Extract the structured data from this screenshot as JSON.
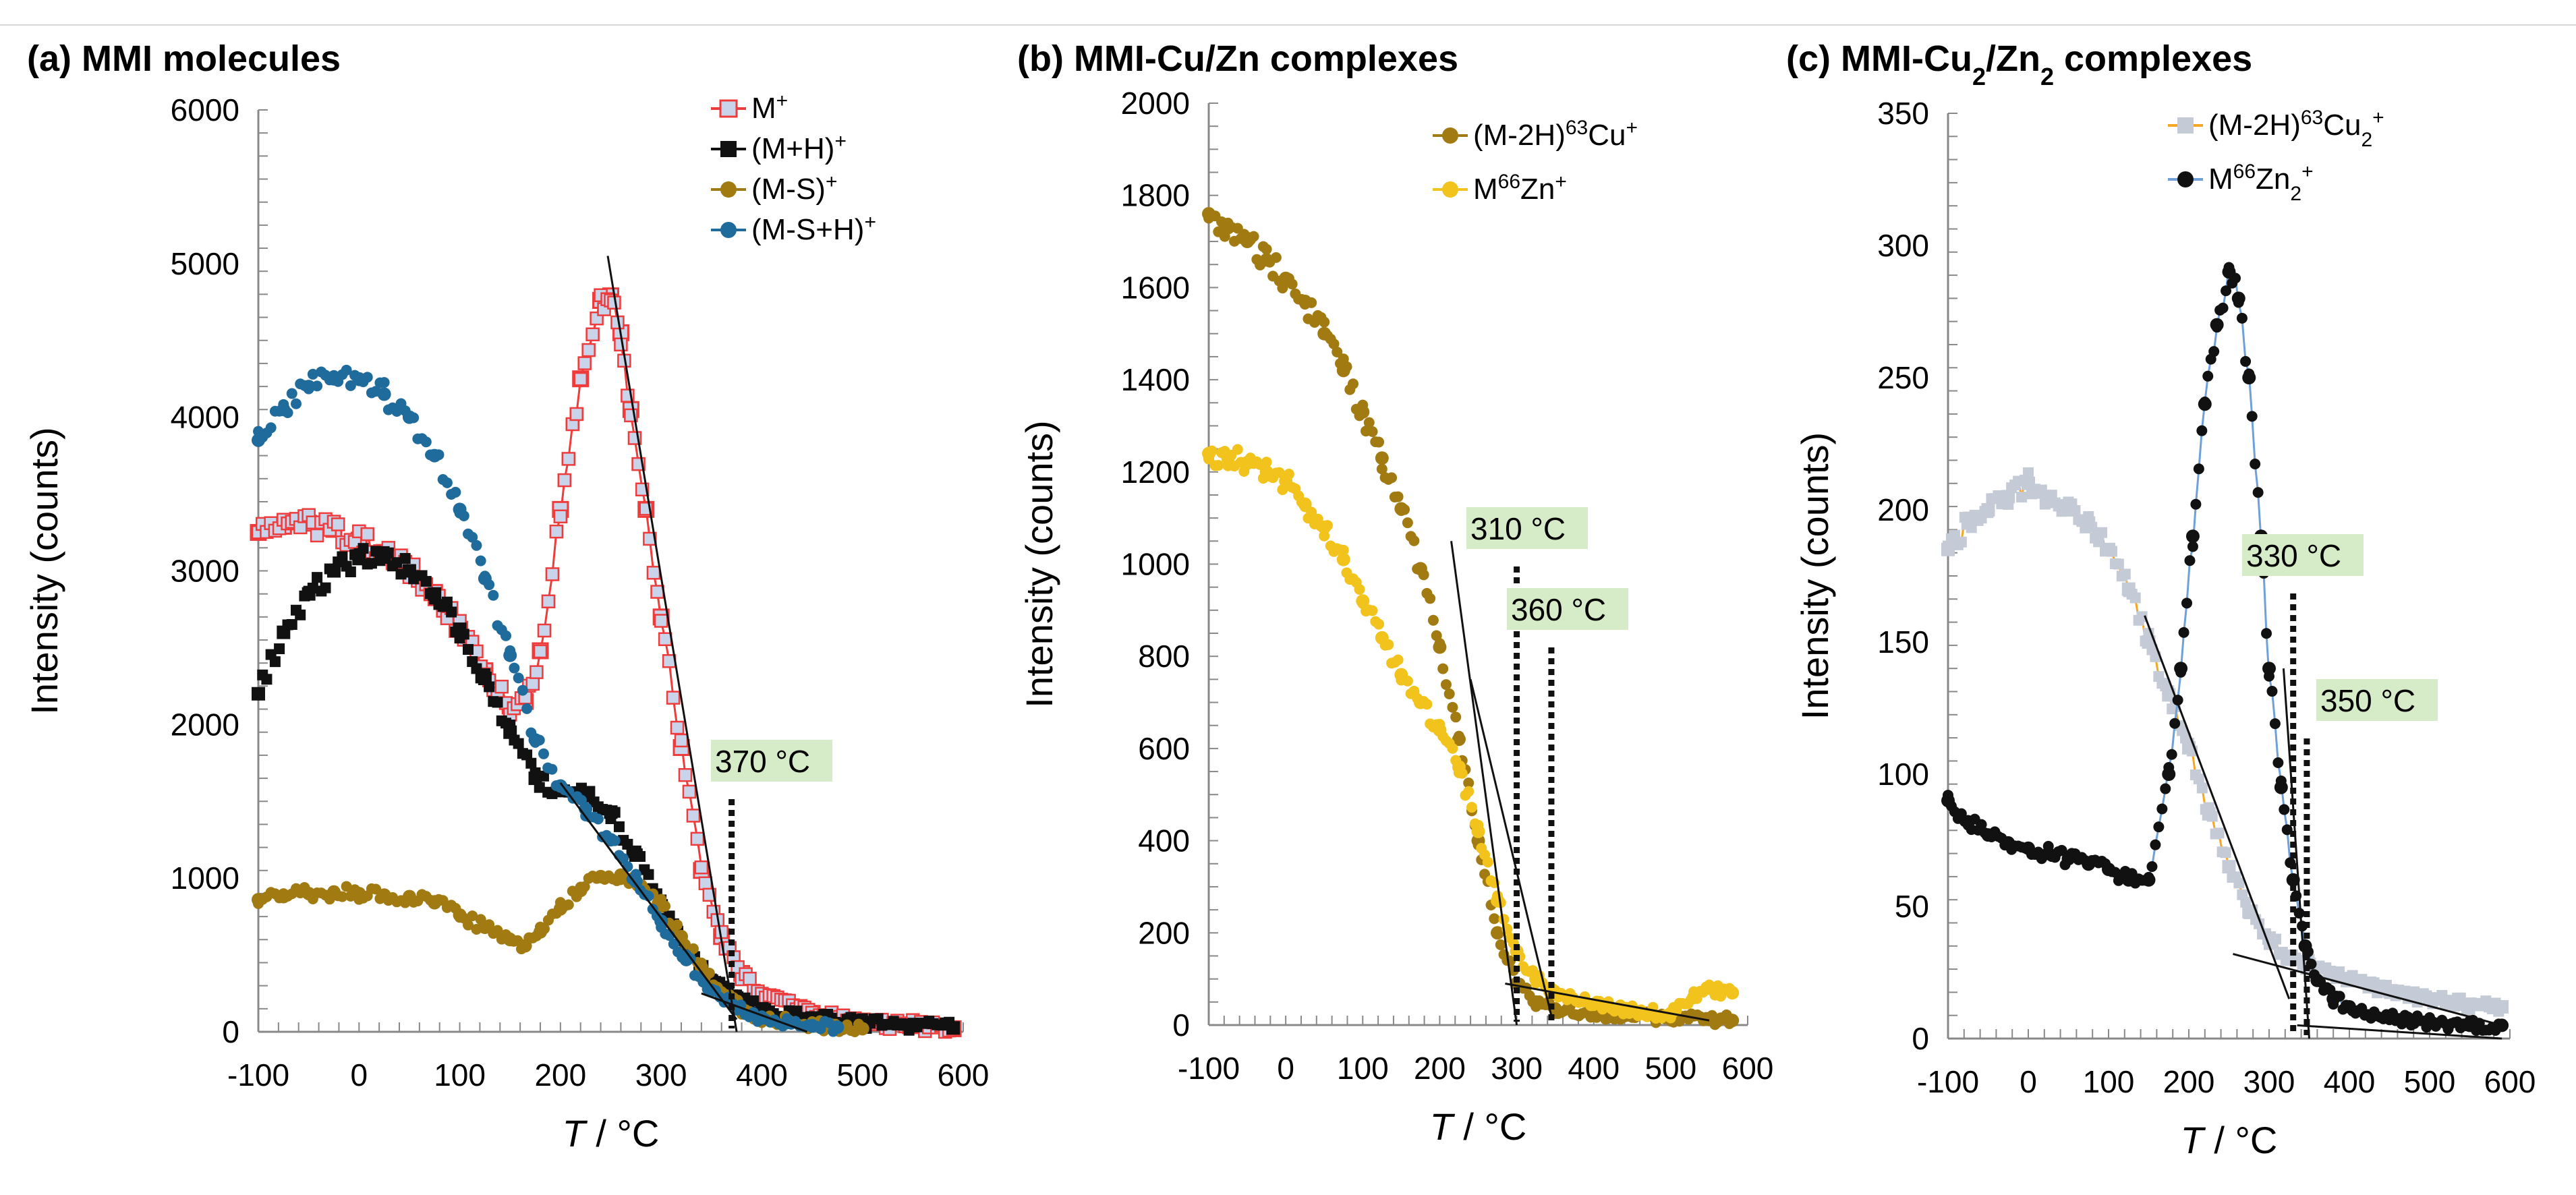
{
  "chart_data": [
    {
      "type": "scatter",
      "panel_label": "(a)",
      "title": "MMI molecules",
      "xlabel_var": "T",
      "xlabel_unit": " / °C",
      "ylabel": "Intensity (counts)",
      "xlim": [
        -100,
        600
      ],
      "ylim": [
        0,
        6000
      ],
      "xticks": [
        -100,
        0,
        100,
        200,
        300,
        400,
        500,
        600
      ],
      "yticks": [
        0,
        1000,
        2000,
        3000,
        4000,
        5000,
        6000
      ],
      "legend_position": "top-right",
      "series": [
        {
          "name": "M",
          "sup": "+",
          "color": "#ee3b3b",
          "fill": "#c9d4ea",
          "marker": "open-square",
          "line": true,
          "x": [
            -100,
            -75,
            -50,
            -25,
            0,
            25,
            50,
            75,
            100,
            125,
            150,
            165,
            180,
            200,
            220,
            240,
            250,
            260,
            270,
            285,
            300,
            320,
            340,
            360,
            380,
            400,
            450,
            500,
            550,
            590
          ],
          "y": [
            3250,
            3290,
            3310,
            3270,
            3200,
            3120,
            3010,
            2860,
            2620,
            2350,
            2120,
            2150,
            2480,
            3400,
            4250,
            4760,
            4790,
            4550,
            4050,
            3400,
            2700,
            1850,
            1050,
            620,
            380,
            230,
            120,
            70,
            40,
            20
          ]
        },
        {
          "name": "(M+H)",
          "sup": "+",
          "color": "#111111",
          "fill": "#111111",
          "marker": "square",
          "line": false,
          "x": [
            -100,
            -75,
            -50,
            -25,
            0,
            25,
            50,
            75,
            100,
            125,
            150,
            175,
            200,
            225,
            250,
            275,
            300,
            325,
            350,
            375,
            400,
            450,
            500,
            550,
            590
          ],
          "y": [
            2200,
            2600,
            2850,
            3000,
            3080,
            3090,
            3000,
            2850,
            2620,
            2300,
            1950,
            1650,
            1570,
            1540,
            1430,
            1150,
            820,
            520,
            330,
            220,
            150,
            90,
            60,
            40,
            25
          ]
        },
        {
          "name": "(M-S)",
          "sup": "+",
          "color": "#a17a12",
          "fill": "#a17a12",
          "marker": "circle",
          "line": false,
          "x": [
            -100,
            -75,
            -50,
            -25,
            0,
            25,
            50,
            75,
            100,
            125,
            150,
            165,
            180,
            200,
            220,
            240,
            260,
            280,
            300,
            320,
            340,
            360,
            380,
            400,
            450,
            500
          ],
          "y": [
            860,
            880,
            900,
            910,
            900,
            890,
            880,
            840,
            760,
            680,
            600,
            560,
            650,
            800,
            920,
            1010,
            1020,
            950,
            820,
            620,
            420,
            250,
            150,
            90,
            40,
            20
          ]
        },
        {
          "name": "(M-S+H)",
          "sup": "+",
          "color": "#1f6b9c",
          "fill": "#1f6b9c",
          "marker": "circle",
          "line": false,
          "x": [
            -100,
            -75,
            -50,
            -25,
            0,
            25,
            50,
            75,
            100,
            125,
            150,
            175,
            200,
            225,
            250,
            275,
            300,
            325,
            350,
            375,
            400,
            425,
            450,
            475
          ],
          "y": [
            3850,
            4050,
            4200,
            4250,
            4250,
            4150,
            4000,
            3750,
            3400,
            2950,
            2450,
            1900,
            1600,
            1450,
            1250,
            980,
            720,
            470,
            270,
            150,
            90,
            60,
            40,
            30
          ]
        }
      ],
      "fit_lines": [
        {
          "x": [
            247,
            375
          ],
          "y": [
            5050,
            0
          ]
        },
        {
          "x": [
            200,
            375
          ],
          "y": [
            1620,
            80
          ]
        },
        {
          "x": [
            340,
            445
          ],
          "y": [
            250,
            0
          ]
        }
      ],
      "annotations": [
        {
          "text": "370 °C",
          "x": 370
        }
      ]
    },
    {
      "type": "scatter",
      "panel_label": "(b)",
      "title": "MMI-Cu/Zn complexes",
      "xlabel_var": "T",
      "xlabel_unit": " / °C",
      "ylabel": "Intensity (counts)",
      "xlim": [
        -100,
        600
      ],
      "ylim": [
        0,
        2000
      ],
      "xticks": [
        -100,
        0,
        100,
        200,
        300,
        400,
        500,
        600
      ],
      "yticks": [
        0,
        200,
        400,
        600,
        800,
        1000,
        1200,
        1400,
        1600,
        1800,
        2000
      ],
      "legend_position": "top-right",
      "series": [
        {
          "name": "(M-2H)",
          "sup_mid": "63",
          "name2": "Cu",
          "sup": "+",
          "color": "#a17a12",
          "fill": "#a17a12",
          "marker": "circle",
          "line": false,
          "x": [
            -100,
            -75,
            -50,
            -25,
            0,
            25,
            50,
            75,
            100,
            125,
            150,
            175,
            200,
            225,
            250,
            275,
            300,
            325,
            350,
            400,
            450,
            500,
            550,
            580
          ],
          "y": [
            1760,
            1730,
            1700,
            1660,
            1620,
            1570,
            1500,
            1420,
            1330,
            1230,
            1120,
            990,
            820,
            620,
            400,
            200,
            90,
            50,
            35,
            25,
            20,
            15,
            12,
            10
          ]
        },
        {
          "name": "M",
          "sup_mid": "66",
          "name2": "Zn",
          "sup": "+",
          "color": "#f2c31c",
          "fill": "#f2c31c",
          "marker": "circle",
          "line": false,
          "x": [
            -100,
            -75,
            -50,
            -25,
            0,
            25,
            50,
            75,
            100,
            125,
            150,
            175,
            200,
            225,
            250,
            275,
            300,
            325,
            350,
            400,
            450,
            500,
            530,
            550,
            580
          ],
          "y": [
            1240,
            1230,
            1220,
            1200,
            1180,
            1130,
            1080,
            1010,
            920,
            840,
            760,
            700,
            640,
            560,
            420,
            270,
            160,
            100,
            70,
            45,
            30,
            25,
            60,
            80,
            70
          ]
        }
      ],
      "fit_lines": [
        {
          "x": [
            215,
            300
          ],
          "y": [
            1050,
            0
          ]
        },
        {
          "x": [
            240,
            345
          ],
          "y": [
            750,
            20
          ]
        },
        {
          "x": [
            285,
            550
          ],
          "y": [
            90,
            10
          ]
        }
      ],
      "annotations": [
        {
          "text": "310 °C",
          "x": 300
        },
        {
          "text": "360 °C",
          "x": 345
        }
      ]
    },
    {
      "type": "scatter",
      "panel_label": "(c)",
      "title_pre": "MMI-Cu",
      "title_sub1": "2",
      "title_mid": "/Zn",
      "title_sub2": "2",
      "title_post": " complexes",
      "xlabel_var": "T",
      "xlabel_unit": " / °C",
      "ylabel": "Intensity (counts)",
      "xlim": [
        -100,
        600
      ],
      "ylim": [
        0,
        350
      ],
      "xticks": [
        -100,
        0,
        100,
        200,
        300,
        400,
        500,
        600
      ],
      "yticks": [
        0,
        50,
        100,
        150,
        200,
        250,
        300,
        350
      ],
      "legend_position": "top-right",
      "series": [
        {
          "name": "(M-2H)",
          "sup_mid": "63",
          "name2": "Cu",
          "sub": "2",
          "sup": "+",
          "color": "#f5a623",
          "fill": "#c4cbd6",
          "marker": "square",
          "line": true,
          "x": [
            -100,
            -75,
            -50,
            -25,
            0,
            25,
            50,
            75,
            100,
            125,
            150,
            175,
            200,
            225,
            250,
            275,
            300,
            325,
            350,
            375,
            400,
            450,
            500,
            550,
            590
          ],
          "y": [
            185,
            195,
            200,
            205,
            210,
            205,
            200,
            195,
            185,
            170,
            150,
            130,
            110,
            85,
            65,
            48,
            38,
            30,
            28,
            25,
            22,
            18,
            15,
            13,
            12
          ]
        },
        {
          "name": "M",
          "sup_mid": "66",
          "name2": "Zn",
          "sub": "2",
          "sup": "+",
          "color": "#111111",
          "fill": "#111111",
          "marker": "circle",
          "line": true,
          "line_color": "#6fa0d8",
          "x": [
            -100,
            -75,
            -50,
            -25,
            0,
            25,
            50,
            75,
            100,
            125,
            150,
            175,
            190,
            205,
            220,
            235,
            250,
            262,
            275,
            290,
            300,
            315,
            330,
            345,
            360,
            380,
            400,
            450,
            500,
            550,
            590
          ],
          "y": [
            90,
            82,
            77,
            74,
            72,
            70,
            68,
            66,
            64,
            60,
            60,
            100,
            140,
            190,
            240,
            270,
            290,
            280,
            250,
            190,
            140,
            95,
            60,
            35,
            22,
            15,
            12,
            8,
            6,
            5,
            5
          ]
        }
      ],
      "fit_lines": [
        {
          "x": [
            145,
            325
          ],
          "y": [
            160,
            15
          ]
        },
        {
          "x": [
            318,
            350
          ],
          "y": [
            140,
            0
          ]
        },
        {
          "x": [
            255,
            590
          ],
          "y": [
            32,
            5
          ]
        },
        {
          "x": [
            335,
            590
          ],
          "y": [
            5,
            0
          ]
        }
      ],
      "annotations": [
        {
          "text": "330 °C",
          "x": 330
        },
        {
          "text": "350 °C",
          "x": 347
        }
      ]
    }
  ]
}
